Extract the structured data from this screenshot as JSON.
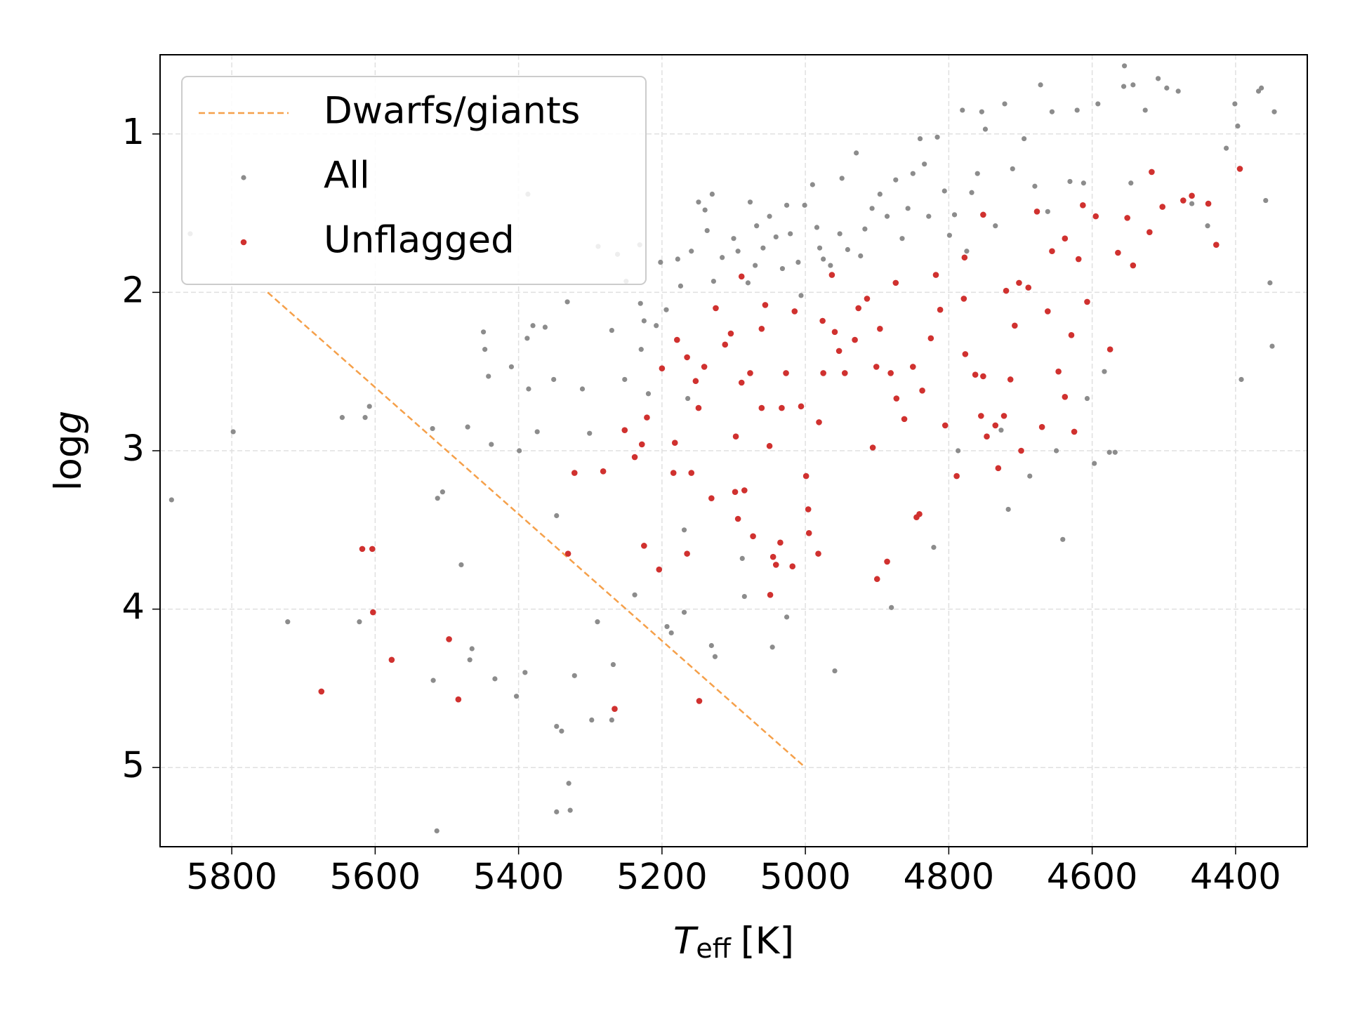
{
  "chart_data": {
    "type": "scatter",
    "xlabel": {
      "symbol": "T",
      "subscript": "eff",
      "unit": "[K]"
    },
    "ylabel": {
      "text": "log",
      "italic": "g"
    },
    "xlim": [
      5900,
      4300
    ],
    "ylim": [
      5.5,
      0.5
    ],
    "xticks": [
      5800,
      5600,
      5400,
      5200,
      5000,
      4800,
      4600,
      4400
    ],
    "yticks": [
      1,
      2,
      3,
      4,
      5
    ],
    "grid": true,
    "legend": "upper left",
    "series": [
      {
        "name": "Dwarfs/giants",
        "kind": "line",
        "dash": true,
        "color": "#f5a04a",
        "x": [
          5750,
          5000
        ],
        "y": [
          2,
          5
        ]
      },
      {
        "name": "All",
        "kind": "points",
        "color": "#8c8c8c",
        "x": [
          5884,
          5858,
          5798,
          5722,
          5646,
          5622,
          5614,
          5608,
          5519,
          5520,
          5513,
          5506,
          5480,
          5471,
          5468,
          5465,
          5449,
          5447,
          5442,
          5438,
          5433,
          5410,
          5403,
          5399,
          5391,
          5387,
          5386,
          5388,
          5380,
          5374,
          5363,
          5347,
          5340,
          5347,
          5351,
          5332,
          5330,
          5322,
          5328,
          5347,
          5311,
          5301,
          5298,
          5290,
          5289,
          5270,
          5268,
          5270,
          5262,
          5250,
          5252,
          5238,
          5231,
          5230,
          5229,
          5225,
          5219,
          5208,
          5202,
          5194,
          5193,
          5187,
          5178,
          5174,
          5169,
          5169,
          5164,
          5159,
          5149,
          5140,
          5130,
          5137,
          5131,
          5126,
          5128,
          5116,
          5100,
          5094,
          5088,
          5085,
          5080,
          5077,
          5068,
          5070,
          5059,
          5050,
          5046,
          5041,
          5032,
          5026,
          5021,
          5010,
          5006,
          5026,
          5001,
          4990,
          4984,
          4980,
          4975,
          4965,
          4959,
          4952,
          4949,
          4941,
          4929,
          4923,
          4917,
          4907,
          4896,
          4886,
          4880,
          4874,
          4865,
          4857,
          4850,
          4840,
          4834,
          4828,
          4821,
          4816,
          4806,
          4799,
          4792,
          4787,
          4781,
          4775,
          4768,
          4760,
          4754,
          4749,
          4735,
          4727,
          4722,
          4717,
          4711,
          4695,
          4687,
          4680,
          4672,
          4662,
          4656,
          4650,
          4641,
          4631,
          4621,
          4612,
          4607,
          4597,
          4592,
          4583,
          4576,
          4568,
          4556,
          4546,
          4555,
          4543,
          4526,
          4508,
          4496,
          4480,
          4461,
          4439,
          4413,
          4401,
          4397,
          4392,
          4368,
          4364,
          4352,
          4349,
          4346,
          5514,
          4358
        ],
        "y": [
          3.31,
          1.63,
          2.88,
          4.08,
          2.79,
          4.08,
          2.79,
          2.72,
          4.45,
          2.86,
          3.3,
          3.26,
          3.72,
          2.85,
          4.32,
          4.25,
          2.25,
          2.36,
          2.53,
          2.96,
          4.44,
          2.47,
          4.55,
          3.0,
          4.4,
          1.38,
          2.61,
          2.29,
          2.21,
          2.88,
          2.22,
          4.74,
          4.77,
          3.41,
          2.55,
          2.06,
          5.1,
          4.42,
          5.27,
          5.28,
          2.61,
          2.89,
          4.7,
          4.08,
          1.71,
          4.7,
          4.35,
          2.24,
          1.76,
          1.93,
          2.55,
          3.91,
          1.7,
          2.07,
          2.36,
          2.18,
          2.64,
          2.21,
          1.81,
          2.11,
          4.11,
          4.15,
          1.79,
          1.96,
          3.5,
          4.02,
          2.67,
          1.74,
          1.43,
          1.48,
          1.38,
          1.61,
          4.23,
          4.3,
          1.93,
          1.78,
          1.66,
          1.74,
          3.68,
          3.92,
          1.94,
          1.43,
          1.58,
          1.83,
          1.72,
          1.52,
          4.24,
          1.65,
          1.85,
          1.45,
          1.63,
          1.81,
          2.02,
          4.05,
          1.45,
          1.32,
          1.59,
          1.72,
          1.79,
          1.83,
          4.39,
          1.63,
          1.28,
          1.73,
          1.12,
          1.77,
          1.6,
          1.47,
          1.38,
          1.52,
          3.99,
          1.29,
          1.66,
          1.47,
          1.25,
          1.03,
          1.19,
          1.52,
          3.61,
          1.02,
          1.36,
          1.64,
          1.51,
          3.0,
          0.85,
          1.74,
          1.37,
          1.25,
          0.86,
          0.97,
          1.58,
          2.87,
          0.81,
          3.37,
          1.22,
          1.03,
          3.16,
          1.33,
          0.69,
          1.49,
          0.86,
          3.0,
          3.56,
          1.3,
          0.85,
          1.31,
          2.67,
          3.08,
          0.81,
          2.5,
          3.01,
          3.01,
          0.7,
          1.31,
          0.57,
          0.69,
          0.85,
          0.65,
          0.71,
          0.73,
          1.44,
          1.58,
          1.09,
          0.81,
          0.95,
          2.55,
          0.73,
          0.71,
          1.94,
          2.34,
          0.86,
          5.4,
          1.42
        ]
      },
      {
        "name": "Unflagged",
        "kind": "points",
        "color": "#d0312f",
        "x": [
          5675,
          5618,
          5604,
          5603,
          5577,
          5497,
          5484,
          5322,
          5331,
          5282,
          5252,
          5266,
          5238,
          5228,
          5221,
          5225,
          5204,
          5200,
          5184,
          5182,
          5179,
          5165,
          5159,
          5148,
          5165,
          5153,
          5149,
          5131,
          5141,
          5125,
          5112,
          5097,
          5098,
          5094,
          5085,
          5104,
          5089,
          5089,
          5077,
          5073,
          5061,
          5050,
          5056,
          5045,
          5041,
          5049,
          5035,
          5018,
          5033,
          5027,
          5015,
          5006,
          4999,
          4996,
          4995,
          4982,
          4981,
          4975,
          4976,
          4959,
          4963,
          4953,
          4945,
          4931,
          4926,
          4914,
          4901,
          4906,
          4900,
          4896,
          4886,
          4874,
          4881,
          4873,
          4862,
          4850,
          4845,
          4841,
          4837,
          4825,
          4818,
          4812,
          4805,
          4789,
          4779,
          4777,
          4763,
          4755,
          4747,
          4731,
          4735,
          4720,
          4714,
          4702,
          4699,
          4708,
          4689,
          4677,
          4670,
          4662,
          4656,
          4647,
          4638,
          4638,
          4629,
          4625,
          4619,
          4613,
          4607,
          4595,
          4575,
          4564,
          4551,
          4543,
          4520,
          4517,
          4502,
          4473,
          4461,
          4438,
          4427,
          4394,
          4752,
          5061,
          4752,
          4723,
          4778
        ],
        "y": [
          4.52,
          3.62,
          3.62,
          4.02,
          4.32,
          4.19,
          4.57,
          3.14,
          3.65,
          3.13,
          2.87,
          4.63,
          3.04,
          2.96,
          2.79,
          3.6,
          3.75,
          2.48,
          3.14,
          2.95,
          2.3,
          3.65,
          3.14,
          4.58,
          2.41,
          2.56,
          2.73,
          3.3,
          2.47,
          2.1,
          2.33,
          2.91,
          3.26,
          3.43,
          3.25,
          2.26,
          2.57,
          1.9,
          2.51,
          3.54,
          2.73,
          2.97,
          2.08,
          3.67,
          3.72,
          3.91,
          3.58,
          3.73,
          2.73,
          2.51,
          2.12,
          2.72,
          3.16,
          3.37,
          3.52,
          3.65,
          2.82,
          2.51,
          2.18,
          2.25,
          1.89,
          2.37,
          2.51,
          2.3,
          2.1,
          2.04,
          2.47,
          2.98,
          3.81,
          2.23,
          3.7,
          1.94,
          2.51,
          2.67,
          2.8,
          2.47,
          3.42,
          3.4,
          2.62,
          2.29,
          1.89,
          2.11,
          2.84,
          3.16,
          2.04,
          2.39,
          2.52,
          2.78,
          2.91,
          3.11,
          2.84,
          1.99,
          2.55,
          1.94,
          3.0,
          2.21,
          1.97,
          1.49,
          2.85,
          2.12,
          1.74,
          2.5,
          1.66,
          2.66,
          2.27,
          2.88,
          1.79,
          1.45,
          2.06,
          1.52,
          2.36,
          1.75,
          1.53,
          1.83,
          1.62,
          1.24,
          1.46,
          1.42,
          1.39,
          1.44,
          1.7,
          1.22,
          2.53,
          2.23,
          1.51,
          2.78,
          1.78
        ]
      }
    ]
  }
}
